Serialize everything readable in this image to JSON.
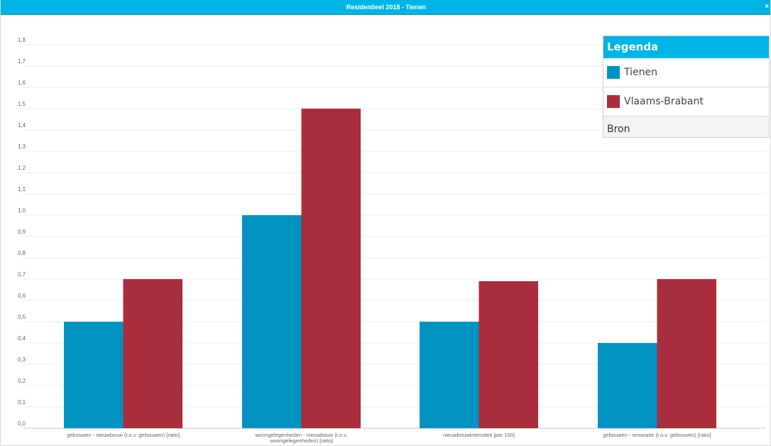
{
  "window": {
    "title": "Residentieel 2018 - Tienen",
    "close_label": "×"
  },
  "legend": {
    "title": "Legenda",
    "items": [
      {
        "label": "Tienen",
        "color": "#0093c1"
      },
      {
        "label": "Vlaams-Brabant",
        "color": "#a92d3c"
      }
    ],
    "source_label": "Bron"
  },
  "chart_data": {
    "type": "bar",
    "categories": [
      "gebouwen - nieuwbouw (t.o.v. gebouwen) [ratio]",
      "woongelegenheden - nieuwbouw (t.o.v. woongelegenheden) [ratio]",
      "nieuwbouwintensiteit [per 100]",
      "gebouwen - renovatie (t.o.v. gebouwen) [ratio]"
    ],
    "series": [
      {
        "name": "Tienen",
        "color": "#0093c1",
        "values": [
          0.5,
          1.0,
          0.5,
          0.4
        ]
      },
      {
        "name": "Vlaams-Brabant",
        "color": "#a92d3c",
        "values": [
          0.7,
          1.5,
          0.69,
          0.7
        ]
      }
    ],
    "yticks": [
      "0,0",
      "0,1",
      "0,2",
      "0,3",
      "0,4",
      "0,5",
      "0,6",
      "0,7",
      "0,8",
      "0,9",
      "1,0",
      "1,1",
      "1,2",
      "1,3",
      "1,4",
      "1,5",
      "1,6",
      "1,7",
      "1,8"
    ],
    "ylim": [
      0,
      1.8
    ],
    "grid": true,
    "legend_position": "top-right",
    "title": "",
    "xlabel": "",
    "ylabel": ""
  }
}
